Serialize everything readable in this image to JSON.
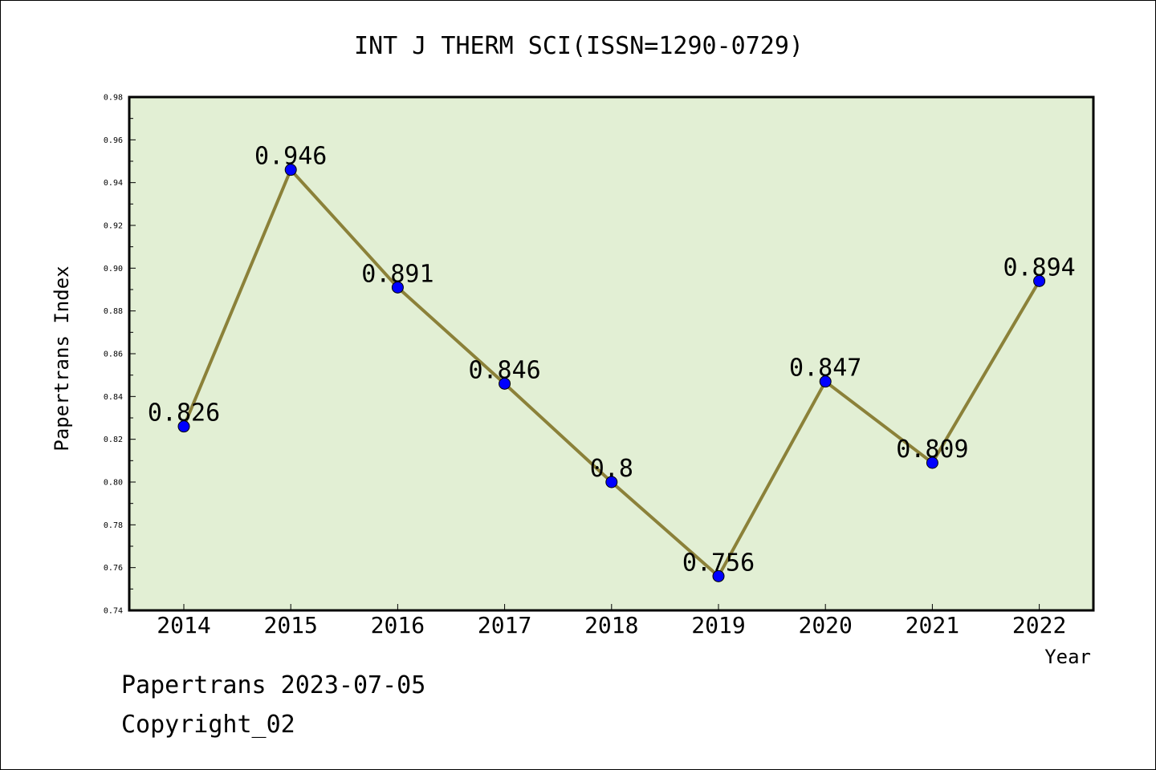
{
  "chart_data": {
    "type": "line",
    "title": "INT J THERM SCI(ISSN=1290-0729)",
    "xlabel": "Year",
    "ylabel": "Papertrans Index",
    "categories": [
      "2014",
      "2015",
      "2016",
      "2017",
      "2018",
      "2019",
      "2020",
      "2021",
      "2022"
    ],
    "series": [
      {
        "values": [
          0.826,
          0.946,
          0.891,
          0.846,
          0.8,
          0.756,
          0.847,
          0.809,
          0.894
        ]
      }
    ],
    "data_labels": [
      "0.826",
      "0.946",
      "0.891",
      "0.846",
      "0.8",
      "0.756",
      "0.847",
      "0.809",
      "0.894"
    ],
    "ylim": [
      0.74,
      0.98
    ],
    "yticks": [
      "0.74",
      "0.76",
      "0.78",
      "0.80",
      "0.82",
      "0.84",
      "0.86",
      "0.88",
      "0.90",
      "0.92",
      "0.94",
      "0.96",
      "0.98"
    ],
    "grid": false,
    "legend": "none",
    "colors": {
      "plot_background": "#e2efd4",
      "line": "#8b8139",
      "marker": "#0000ff",
      "axis": "#000000"
    }
  },
  "footer": {
    "line1": "Papertrans 2023-07-05",
    "line2": "Copyright_02"
  }
}
